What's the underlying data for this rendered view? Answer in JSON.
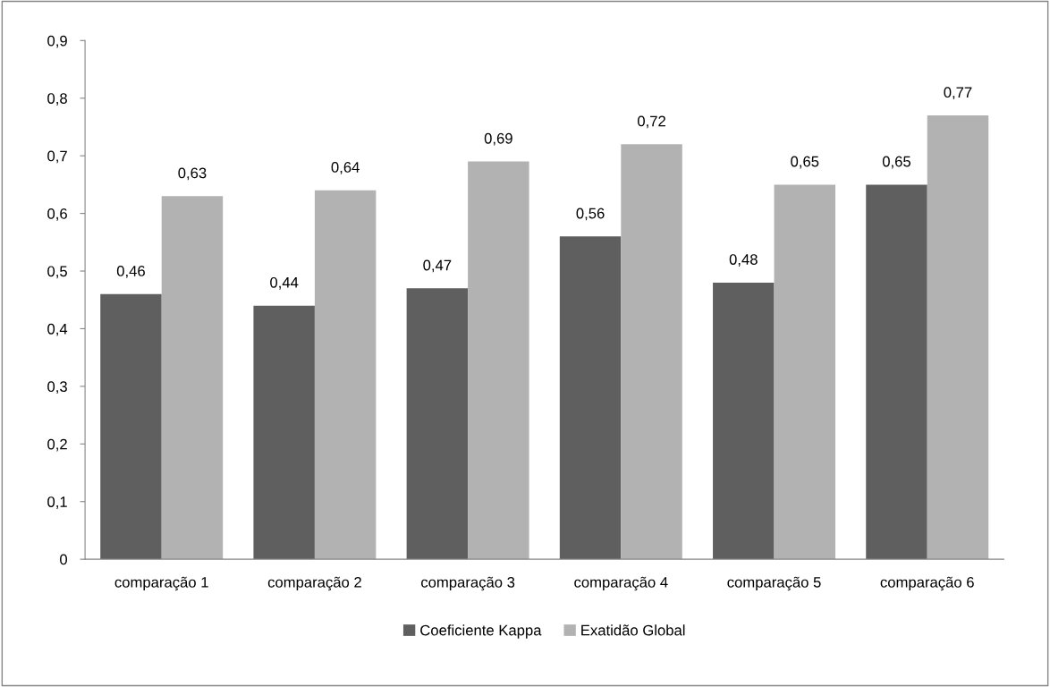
{
  "chart_data": {
    "type": "bar",
    "categories": [
      "comparação 1",
      "comparação 2",
      "comparação 3",
      "comparação 4",
      "comparação 5",
      "comparação 6"
    ],
    "series": [
      {
        "name": "Coeficiente Kappa",
        "color": "#5f5f5f",
        "values": [
          0.46,
          0.44,
          0.47,
          0.56,
          0.48,
          0.65
        ],
        "value_labels": [
          "0,46",
          "0,44",
          "0,47",
          "0,56",
          "0,48",
          "0,65"
        ]
      },
      {
        "name": "Exatidão Global",
        "color": "#b2b2b2",
        "values": [
          0.63,
          0.64,
          0.69,
          0.72,
          0.65,
          0.77
        ],
        "value_labels": [
          "0,63",
          "0,64",
          "0,69",
          "0,72",
          "0,65",
          "0,77"
        ]
      }
    ],
    "ylim": [
      0,
      0.9
    ],
    "yticks": [
      {
        "value": 0,
        "label": "0"
      },
      {
        "value": 0.1,
        "label": "0,1"
      },
      {
        "value": 0.2,
        "label": "0,2"
      },
      {
        "value": 0.3,
        "label": "0,3"
      },
      {
        "value": 0.4,
        "label": "0,4"
      },
      {
        "value": 0.5,
        "label": "0,5"
      },
      {
        "value": 0.6,
        "label": "0,6"
      },
      {
        "value": 0.7,
        "label": "0,7"
      },
      {
        "value": 0.8,
        "label": "0,8"
      },
      {
        "value": 0.9,
        "label": "0,9"
      }
    ],
    "grid": false,
    "legend": "bottom"
  }
}
